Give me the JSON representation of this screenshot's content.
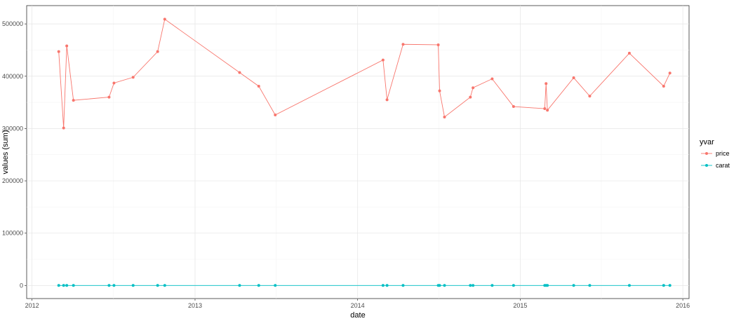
{
  "chart_data": {
    "type": "line",
    "xlabel": "date",
    "ylabel": "values (sum)",
    "xlim": [
      "2011-12-20",
      "2016-01-15"
    ],
    "ylim": [
      -25000,
      535000
    ],
    "x_ticks": [
      "2012",
      "2013",
      "2014",
      "2015",
      "2016"
    ],
    "y_ticks": [
      "0",
      "100000",
      "200000",
      "300000",
      "400000",
      "500000"
    ],
    "grid": true,
    "legend": {
      "title": "yvar",
      "position": "right"
    },
    "series": [
      {
        "name": "price",
        "color": "#F8766D",
        "x": [
          "2012-03-01",
          "2012-03-12",
          "2012-03-19",
          "2012-04-03",
          "2012-06-22",
          "2012-07-03",
          "2012-08-15",
          "2012-10-09",
          "2012-10-25",
          "2013-04-11",
          "2013-05-24",
          "2013-06-30",
          "2014-02-27",
          "2014-03-08",
          "2014-04-13",
          "2014-07-01",
          "2014-07-04",
          "2014-07-15",
          "2014-09-11",
          "2014-09-17",
          "2014-10-30",
          "2014-12-17",
          "2015-02-25",
          "2015-02-28",
          "2015-03-03",
          "2015-05-01",
          "2015-06-06",
          "2015-09-03",
          "2015-11-19",
          "2015-12-03"
        ],
        "values": [
          447000,
          301000,
          458000,
          354000,
          360000,
          387000,
          398000,
          447000,
          509000,
          407000,
          381000,
          326000,
          431000,
          355000,
          461000,
          460000,
          372000,
          322000,
          360000,
          378000,
          395000,
          342000,
          338000,
          386000,
          335000,
          397000,
          362000,
          444000,
          381000,
          406000
        ]
      },
      {
        "name": "carat",
        "color": "#00BFC4",
        "x": [
          "2012-03-01",
          "2012-03-12",
          "2012-03-19",
          "2012-04-03",
          "2012-06-22",
          "2012-07-03",
          "2012-08-15",
          "2012-10-09",
          "2012-10-25",
          "2013-04-11",
          "2013-05-24",
          "2013-06-30",
          "2014-02-27",
          "2014-03-08",
          "2014-04-13",
          "2014-07-01",
          "2014-07-04",
          "2014-07-15",
          "2014-09-11",
          "2014-09-17",
          "2014-10-30",
          "2014-12-17",
          "2015-02-25",
          "2015-02-28",
          "2015-03-03",
          "2015-05-01",
          "2015-06-06",
          "2015-09-03",
          "2015-11-19",
          "2015-12-03"
        ],
        "values": [
          50,
          40,
          60,
          40,
          45,
          50,
          50,
          55,
          60,
          50,
          45,
          40,
          55,
          45,
          60,
          55,
          45,
          40,
          45,
          45,
          50,
          40,
          40,
          45,
          40,
          50,
          45,
          55,
          45,
          50
        ]
      }
    ]
  }
}
